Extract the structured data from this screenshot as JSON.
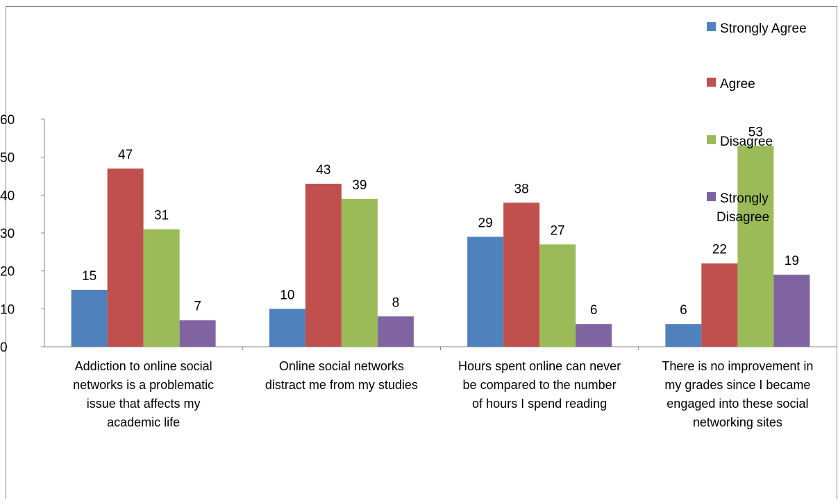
{
  "chart_data": {
    "type": "bar",
    "title": "",
    "xlabel": "",
    "ylabel": "",
    "ylim": [
      0,
      60
    ],
    "yticks": [
      0,
      10,
      20,
      30,
      40,
      50,
      60
    ],
    "grid": false,
    "legend_position": "right",
    "categories": [
      [
        "Addiction to online social",
        "networks is a problematic",
        "issue that affects my",
        "academic life"
      ],
      [
        "Online social networks",
        "distract me from my studies"
      ],
      [
        "Hours spent online can never",
        "be compared to the number",
        "of hours I spend reading"
      ],
      [
        "There is no improvement in",
        "my grades since I became",
        "engaged into these social",
        "networking sites"
      ]
    ],
    "series": [
      {
        "name": "Strongly Agree",
        "legend_lines": [
          "Strongly Agree"
        ],
        "color": "#4F81BD",
        "values": [
          15,
          10,
          29,
          6
        ]
      },
      {
        "name": "Agree",
        "legend_lines": [
          "Agree"
        ],
        "color": "#C0504D",
        "values": [
          47,
          43,
          38,
          22
        ]
      },
      {
        "name": "Disagree",
        "legend_lines": [
          "Disagree"
        ],
        "color": "#9BBB59",
        "values": [
          31,
          39,
          27,
          53
        ]
      },
      {
        "name": "Strongly Disagree",
        "legend_lines": [
          "Strongly",
          "Disagree"
        ],
        "color": "#8064A2",
        "values": [
          7,
          8,
          6,
          19
        ]
      }
    ]
  }
}
